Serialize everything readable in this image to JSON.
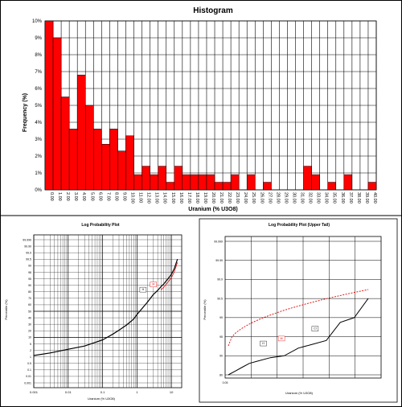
{
  "histogram": {
    "chart_data": {
      "type": "bar",
      "title": "Histogram",
      "xlabel": "Uranium (% U3O8)",
      "ylabel": "Frequency (%)",
      "ylim": [
        0,
        10
      ],
      "yticks": [
        "0%",
        "1%",
        "2%",
        "3%",
        "4%",
        "5%",
        "6%",
        "7%",
        "8%",
        "9%",
        "10%"
      ],
      "categories": [
        "0.00",
        "1.00",
        "2.00",
        "3.00",
        "4.00",
        "5.00",
        "6.00",
        "7.00",
        "8.00",
        "9.00",
        "10.00",
        "11.00",
        "12.00",
        "13.00",
        "14.00",
        "15.00",
        "16.00",
        "17.00",
        "18.00",
        "19.00",
        "20.00",
        "21.00",
        "22.00",
        "23.00",
        "24.00",
        "25.00",
        "26.00",
        "27.00",
        "28.00",
        "29.00",
        "30.00",
        "31.00",
        "32.00",
        "33.00",
        "34.00",
        "35.00",
        "36.00",
        "37.00",
        "38.00",
        "39.00",
        "40.00"
      ],
      "values": [
        10,
        9,
        5.5,
        3.6,
        6.8,
        5.0,
        3.6,
        2.7,
        3.6,
        2.3,
        3.2,
        0.9,
        1.4,
        0.9,
        1.4,
        0.45,
        1.4,
        0.9,
        0.9,
        0.9,
        0.9,
        0.45,
        0.45,
        0.9,
        0,
        0.9,
        0,
        0.45,
        0,
        0,
        0,
        0,
        1.4,
        0.9,
        0,
        0.45,
        0,
        0.9,
        0,
        0,
        0.45
      ],
      "bar_color": "#ff0000",
      "grid": true
    }
  },
  "logprob": {
    "chart_data": {
      "type": "line",
      "title": "Log Probability Plot",
      "xlabel": "Uranium (% U3O8)",
      "ylabel": "Percentile (%)",
      "xscale": "log",
      "xticks": [
        "0.001",
        "0.01",
        "0.1",
        "1",
        "10"
      ],
      "yticks": [
        "99.999",
        "99.99",
        "99.9",
        "99.5",
        "99",
        "98",
        "95",
        "90",
        "80",
        "70",
        "60",
        "50",
        "40",
        "30",
        "20",
        "10",
        "5",
        "2",
        "1",
        "0.5",
        "0.1",
        "0.01",
        "0.001"
      ],
      "series": [
        {
          "x": [
            0.001,
            0.003,
            0.01,
            0.03,
            0.1,
            0.2,
            0.3,
            0.5,
            0.8,
            1,
            1.5,
            2,
            3,
            4,
            5,
            6,
            8,
            10,
            12,
            15
          ],
          "y": [
            1.2,
            1.6,
            2.5,
            4,
            8,
            15,
            21,
            29,
            38,
            45,
            56,
            64,
            76,
            82,
            88,
            91,
            95,
            97,
            98.5,
            99.5
          ]
        }
      ],
      "labels": [
        "H",
        "M"
      ],
      "grid": true
    }
  },
  "tail": {
    "chart_data": {
      "type": "line",
      "title": "Log Probability Plot (Upper Tail)",
      "xlabel": "Uranium (% U3O8)",
      "ylabel": "Percentile (%)",
      "yticks": [
        "99.999",
        "99.99",
        "99.9",
        "99.5",
        "99",
        "95",
        "90",
        "80"
      ],
      "series": [
        {
          "x": [
            0,
            0.05,
            0.1,
            0.15,
            0.2,
            0.3,
            0.4,
            0.5,
            0.6,
            0.7,
            0.8,
            0.9,
            1
          ],
          "y": [
            80,
            82,
            84,
            86,
            87,
            89,
            90,
            92,
            93,
            94,
            98,
            99,
            99.5
          ]
        }
      ],
      "xtick_label": "0.05",
      "labels": [
        "H",
        "M",
        "Cl"
      ],
      "grid": true
    }
  }
}
